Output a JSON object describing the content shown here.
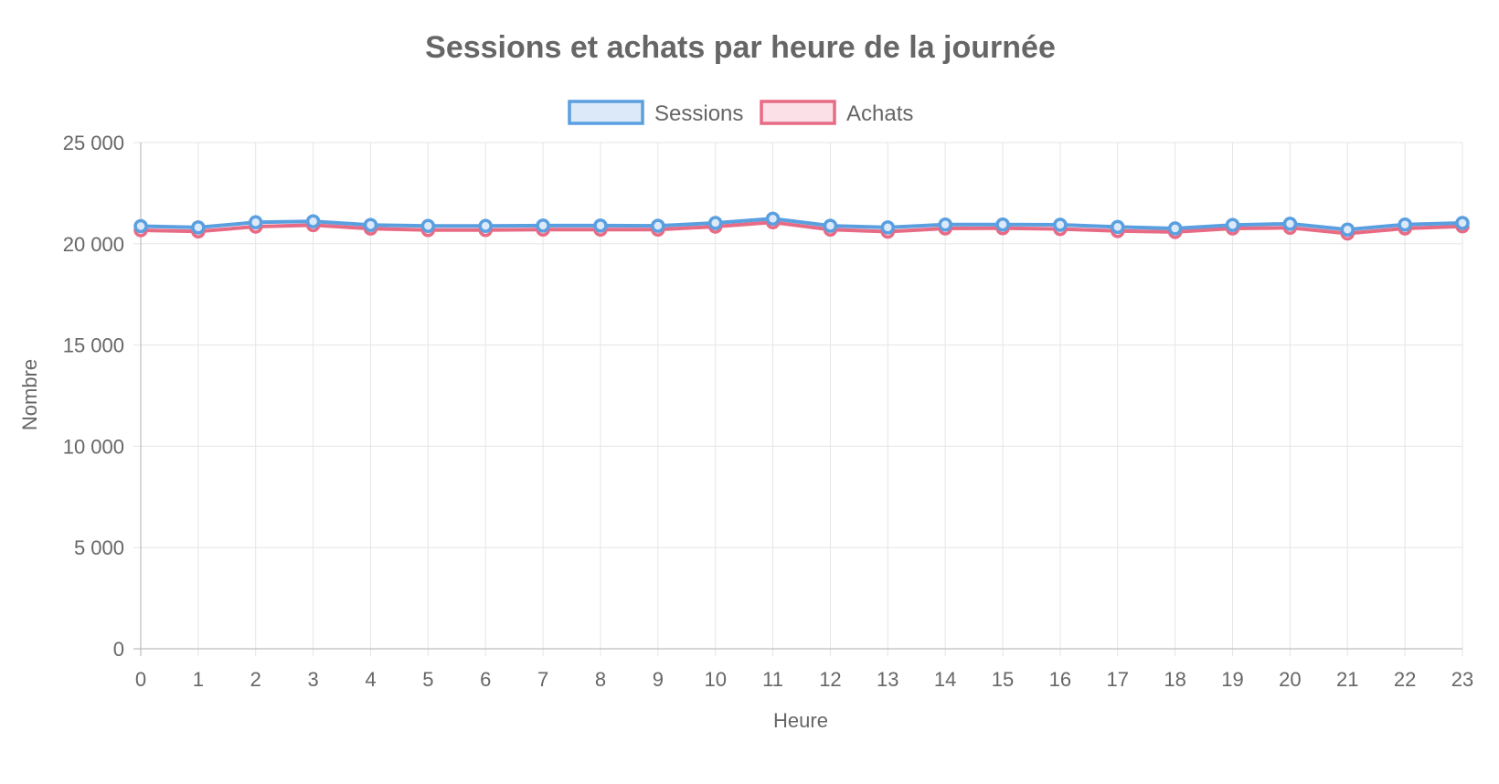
{
  "chart_data": {
    "type": "line",
    "title": "Sessions et achats par heure de la journée",
    "xlabel": "Heure",
    "ylabel": "Nombre",
    "ylim": [
      0,
      25000
    ],
    "y_ticks": [
      0,
      5000,
      10000,
      15000,
      20000,
      25000
    ],
    "y_tick_labels": [
      "0",
      "5 000",
      "10 000",
      "15 000",
      "20 000",
      "25 000"
    ],
    "x": [
      0,
      1,
      2,
      3,
      4,
      5,
      6,
      7,
      8,
      9,
      10,
      11,
      12,
      13,
      14,
      15,
      16,
      17,
      18,
      19,
      20,
      21,
      22,
      23
    ],
    "grid": true,
    "legend_position": "top",
    "series": [
      {
        "name": "Sessions",
        "color": "#5a9fe0",
        "fill": "#dce9f9",
        "values": [
          20870,
          20810,
          21060,
          21110,
          20930,
          20880,
          20880,
          20900,
          20900,
          20890,
          21030,
          21240,
          20890,
          20810,
          20950,
          20950,
          20940,
          20830,
          20760,
          20930,
          20990,
          20700,
          20950,
          21030
        ]
      },
      {
        "name": "Achats",
        "color": "#e86b85",
        "fill": "#fbe1e7",
        "values": [
          20670,
          20610,
          20850,
          20920,
          20750,
          20680,
          20680,
          20700,
          20700,
          20700,
          20850,
          21060,
          20700,
          20600,
          20760,
          20770,
          20730,
          20630,
          20580,
          20760,
          20790,
          20510,
          20760,
          20860
        ]
      }
    ]
  }
}
